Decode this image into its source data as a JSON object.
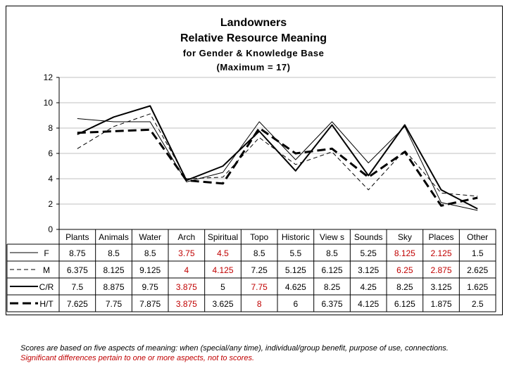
{
  "chart_title": {
    "line1": "Landowners",
    "line2": "Relative Resource Meaning",
    "line3": "for Gender & Knowledge Base",
    "line4": "(Maximum = 17)"
  },
  "chart_data": {
    "type": "line",
    "title": "Landowners Relative Resource Meaning for Gender & Knowledge Base (Maximum = 17)",
    "categories": [
      "Plants",
      "Animals",
      "Water",
      "Arch",
      "Spiritual",
      "Topo",
      "Historic",
      "View s",
      "Sounds",
      "Sky",
      "Places",
      "Other"
    ],
    "ylim": [
      0,
      12
    ],
    "yticks": [
      0,
      2,
      4,
      6,
      8,
      10,
      12
    ],
    "grid": true,
    "legend": "left data table",
    "series": [
      {
        "name": "F",
        "style": "thin",
        "values": [
          8.75,
          8.5,
          8.5,
          3.75,
          4.5,
          8.5,
          5.5,
          8.5,
          5.25,
          8.125,
          2.125,
          1.5
        ],
        "labels": [
          "8.75",
          "8.5",
          "8.5",
          "3.75",
          "4.5",
          "8.5",
          "5.5",
          "8.5",
          "5.25",
          "8.125",
          "2.125",
          "1.5"
        ],
        "highlight": [
          false,
          false,
          false,
          true,
          true,
          false,
          false,
          false,
          false,
          true,
          true,
          false
        ]
      },
      {
        "name": "M",
        "style": "thin-dashed",
        "values": [
          6.375,
          8.125,
          9.125,
          4,
          4.125,
          7.25,
          5.125,
          6.125,
          3.125,
          6.25,
          2.875,
          2.625
        ],
        "labels": [
          "6.375",
          "8.125",
          "9.125",
          "4",
          "4.125",
          "7.25",
          "5.125",
          "6.125",
          "3.125",
          "6.25",
          "2.875",
          "2.625"
        ],
        "highlight": [
          false,
          false,
          false,
          true,
          true,
          false,
          false,
          false,
          false,
          true,
          true,
          false
        ]
      },
      {
        "name": "C/R",
        "style": "thick",
        "values": [
          7.5,
          8.875,
          9.75,
          3.875,
          5,
          7.75,
          4.625,
          8.25,
          4.25,
          8.25,
          3.125,
          1.625
        ],
        "labels": [
          "7.5",
          "8.875",
          "9.75",
          "3.875",
          "5",
          "7.75",
          "4.625",
          "8.25",
          "4.25",
          "8.25",
          "3.125",
          "1.625"
        ],
        "highlight": [
          false,
          false,
          false,
          true,
          false,
          true,
          false,
          false,
          false,
          false,
          false,
          false
        ]
      },
      {
        "name": "H/T",
        "style": "thick-dashed",
        "values": [
          7.625,
          7.75,
          7.875,
          3.875,
          3.625,
          8,
          6,
          6.375,
          4.125,
          6.125,
          1.875,
          2.5
        ],
        "labels": [
          "7.625",
          "7.75",
          "7.875",
          "3.875",
          "3.625",
          "8",
          "6",
          "6.375",
          "4.125",
          "6.125",
          "1.875",
          "2.5"
        ],
        "highlight": [
          false,
          false,
          false,
          true,
          false,
          true,
          false,
          false,
          false,
          false,
          false,
          false
        ]
      }
    ]
  },
  "colors": {
    "text": "#000000",
    "significant": "#c00000",
    "grid": "#c0c0c0"
  },
  "footnote": {
    "line1": "Scores are based on five aspects of meaning: when (special/any time), individual/group benefit, purpose of use, connections.",
    "line2": "Significant differences pertain to one or more aspects, not to scores."
  }
}
